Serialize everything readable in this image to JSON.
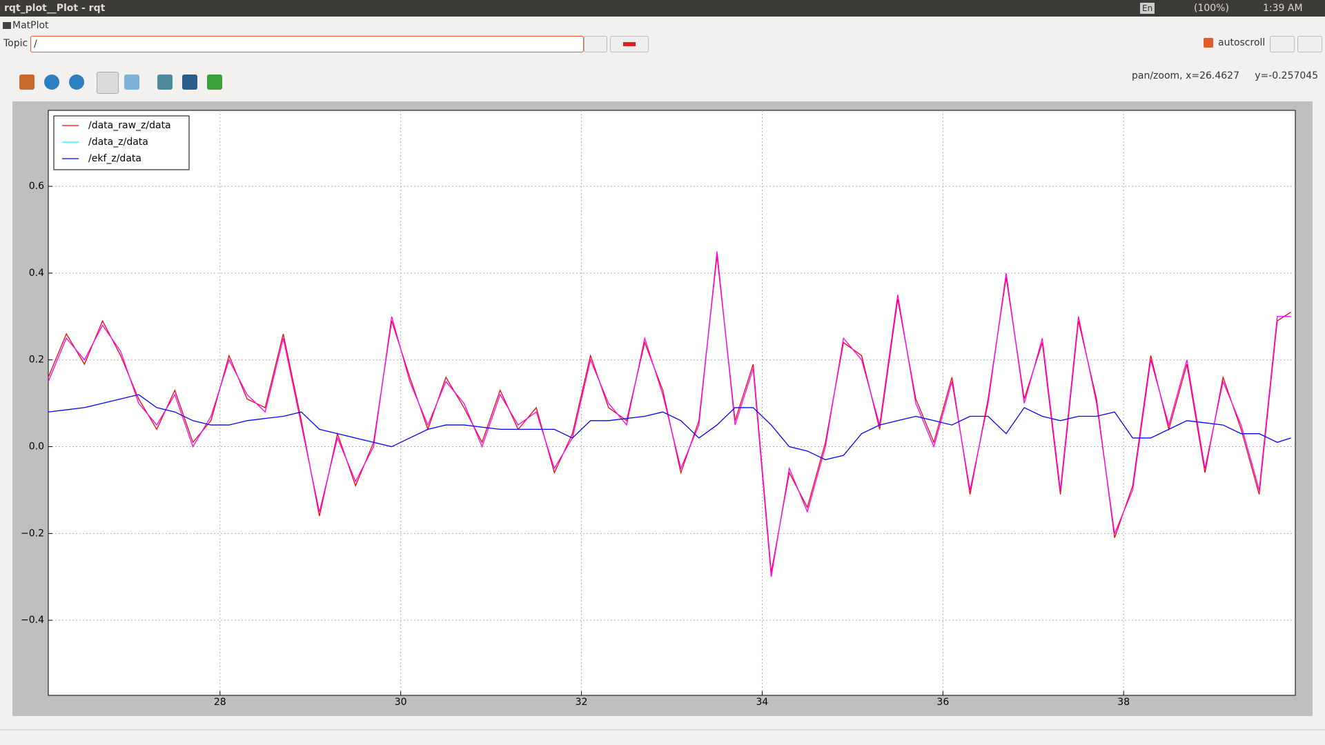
{
  "window": {
    "title": "rqt_plot__Plot - rqt",
    "keyboard": "En",
    "battery": "(100%)",
    "clock": "1:39 AM"
  },
  "plugin": {
    "title": "MatPlot",
    "topic_label": "Topic",
    "topic_value": "/",
    "autoscroll": "autoscroll"
  },
  "toolbar": {
    "status": "pan/zoom, x=26.4627     y=-0.257045"
  },
  "chart_data": {
    "type": "line",
    "x": [
      26.1,
      26.3,
      26.5,
      26.7,
      26.9,
      27.1,
      27.3,
      27.5,
      27.7,
      27.9,
      28.1,
      28.3,
      28.5,
      28.7,
      28.9,
      29.1,
      29.3,
      29.5,
      29.7,
      29.9,
      30.1,
      30.3,
      30.5,
      30.7,
      30.9,
      31.1,
      31.3,
      31.5,
      31.7,
      31.9,
      32.1,
      32.3,
      32.5,
      32.7,
      32.9,
      33.1,
      33.3,
      33.5,
      33.7,
      33.9,
      34.1,
      34.3,
      34.5,
      34.7,
      34.9,
      35.1,
      35.3,
      35.5,
      35.7,
      35.9,
      36.1,
      36.3,
      36.5,
      36.7,
      36.9,
      37.1,
      37.3,
      37.5,
      37.7,
      37.9,
      38.1,
      38.3,
      38.5,
      38.7,
      38.9,
      39.1,
      39.3,
      39.5,
      39.7,
      39.85
    ],
    "series": [
      {
        "name": "/data_raw_z/data",
        "color": "#ff0000",
        "values": [
          0.16,
          0.26,
          0.19,
          0.29,
          0.21,
          0.11,
          0.04,
          0.13,
          0.01,
          0.06,
          0.21,
          0.11,
          0.09,
          0.26,
          0.06,
          -0.16,
          0.03,
          -0.09,
          0.01,
          0.29,
          0.16,
          0.04,
          0.16,
          0.09,
          0.01,
          0.13,
          0.04,
          0.09,
          -0.06,
          0.03,
          0.21,
          0.09,
          0.06,
          0.24,
          0.13,
          -0.06,
          0.06,
          0.44,
          0.06,
          0.19,
          -0.29,
          -0.06,
          -0.14,
          0.01,
          0.24,
          0.21,
          0.04,
          0.34,
          0.11,
          0.01,
          0.16,
          -0.11,
          0.11,
          0.39,
          0.11,
          0.24,
          -0.11,
          0.29,
          0.11,
          -0.21,
          -0.09,
          0.21,
          0.04,
          0.19,
          -0.06,
          0.16,
          0.04,
          -0.11,
          0.29,
          0.31
        ]
      },
      {
        "name": "/data_z/data",
        "color": "#ff00ff",
        "legend_color": "#00ffff",
        "values": [
          0.15,
          0.25,
          0.2,
          0.28,
          0.22,
          0.1,
          0.05,
          0.12,
          0.0,
          0.07,
          0.2,
          0.12,
          0.08,
          0.25,
          0.05,
          -0.15,
          0.02,
          -0.08,
          0.0,
          0.3,
          0.15,
          0.05,
          0.15,
          0.1,
          0.0,
          0.12,
          0.05,
          0.08,
          -0.05,
          0.02,
          0.2,
          0.1,
          0.05,
          0.25,
          0.12,
          -0.05,
          0.05,
          0.45,
          0.05,
          0.18,
          -0.3,
          -0.05,
          -0.15,
          0.0,
          0.25,
          0.2,
          0.05,
          0.35,
          0.1,
          0.0,
          0.15,
          -0.1,
          0.1,
          0.4,
          0.1,
          0.25,
          -0.1,
          0.3,
          0.1,
          -0.2,
          -0.1,
          0.2,
          0.05,
          0.2,
          -0.05,
          0.15,
          0.05,
          -0.1,
          0.3,
          0.3
        ]
      },
      {
        "name": "/ekf_z/data",
        "color": "#0000ff",
        "values": [
          0.08,
          0.085,
          0.09,
          0.1,
          0.11,
          0.12,
          0.09,
          0.08,
          0.06,
          0.05,
          0.05,
          0.06,
          0.065,
          0.07,
          0.08,
          0.04,
          0.03,
          0.02,
          0.01,
          0.0,
          0.02,
          0.04,
          0.05,
          0.05,
          0.045,
          0.04,
          0.04,
          0.04,
          0.04,
          0.02,
          0.06,
          0.06,
          0.065,
          0.07,
          0.08,
          0.06,
          0.02,
          0.05,
          0.09,
          0.09,
          0.05,
          0.0,
          -0.01,
          -0.03,
          -0.02,
          0.03,
          0.05,
          0.06,
          0.07,
          0.06,
          0.05,
          0.07,
          0.07,
          0.03,
          0.09,
          0.07,
          0.06,
          0.07,
          0.07,
          0.08,
          0.02,
          0.02,
          0.04,
          0.06,
          0.055,
          0.05,
          0.03,
          0.03,
          0.01,
          0.02
        ]
      }
    ],
    "xlim": [
      26.1,
      39.9
    ],
    "ylim": [
      -0.573,
      0.775
    ],
    "xticks": [
      28,
      30,
      32,
      34,
      36,
      38
    ],
    "yticks": [
      {
        "value": -0.4,
        "label": "−0.4"
      },
      {
        "value": -0.2,
        "label": "−0.2"
      },
      {
        "value": 0.0,
        "label": "0.0"
      },
      0.2,
      0.4,
      0.6
    ],
    "grid": true,
    "legend": "upper left"
  }
}
